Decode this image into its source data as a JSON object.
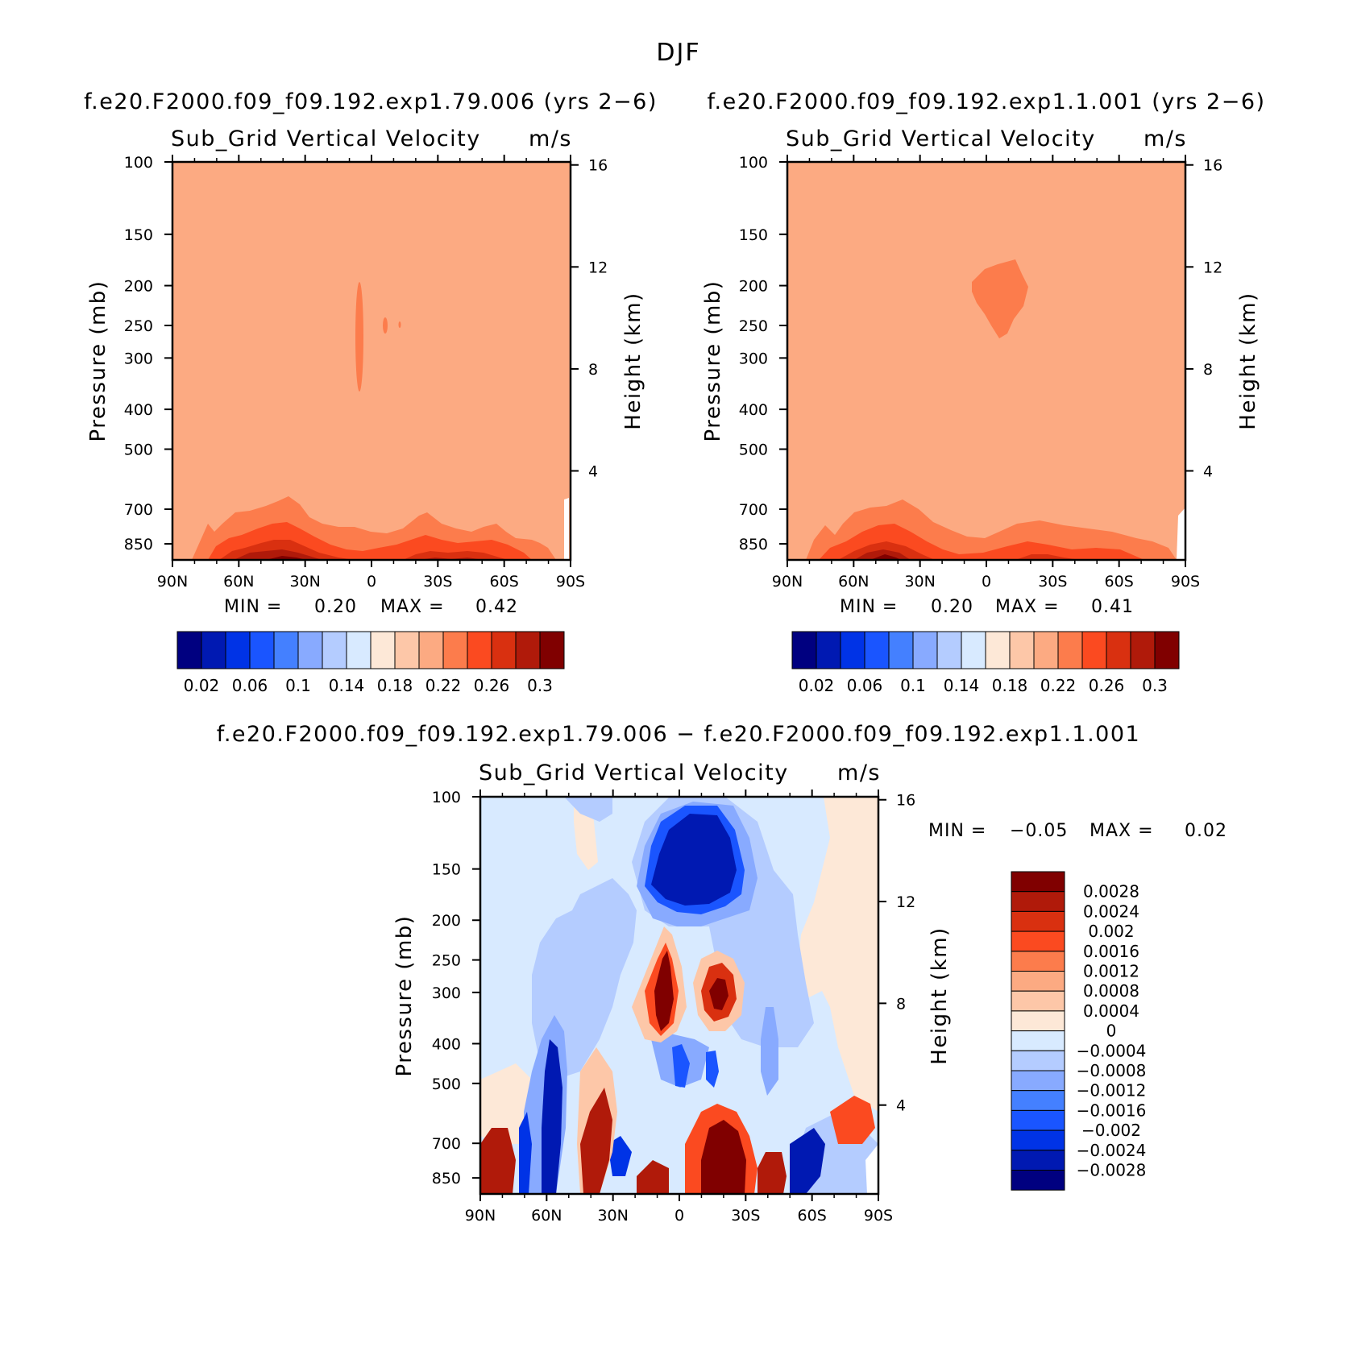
{
  "figure_title": "DJF",
  "chart_data": [
    {
      "type": "heatmap",
      "id": "left",
      "case_title": "f.e20.F2000.f09_f09.192.exp1.79.006 (yrs 2−6)",
      "title": "Sub_Grid Vertical Velocity",
      "units": "m/s",
      "ylabel": "Pressure (mb)",
      "y2label": "Height (km)",
      "x_ticks": [
        "90N",
        "60N",
        "30N",
        "0",
        "30S",
        "60S",
        "90S"
      ],
      "x_values": [
        90,
        60,
        30,
        0,
        -30,
        -60,
        -90
      ],
      "y_ticks": [
        "100",
        "150",
        "200",
        "250",
        "300",
        "400",
        "500",
        "700",
        "850"
      ],
      "y_values": [
        100,
        150,
        200,
        250,
        300,
        400,
        500,
        700,
        850
      ],
      "y2_ticks": [
        "16",
        "12",
        "8",
        "4"
      ],
      "y2_values": [
        16,
        12,
        8,
        4
      ],
      "ylim": [
        100,
        930
      ],
      "min_label": "MIN =",
      "min_value": "0.20",
      "max_label": "MAX =",
      "max_value": "0.42",
      "colorbar_labels": [
        "0.02",
        "0.06",
        "0.1",
        "0.14",
        "0.18",
        "0.22",
        "0.26",
        "0.3"
      ],
      "colorbar_levels": [
        0.02,
        0.04,
        0.06,
        0.08,
        0.1,
        0.12,
        0.14,
        0.16,
        0.18,
        0.2,
        0.22,
        0.24,
        0.26,
        0.28,
        0.3
      ]
    },
    {
      "type": "heatmap",
      "id": "right",
      "case_title": "f.e20.F2000.f09_f09.192.exp1.1.001 (yrs 2−6)",
      "title": "Sub_Grid Vertical Velocity",
      "units": "m/s",
      "ylabel": "Pressure (mb)",
      "y2label": "Height (km)",
      "x_ticks": [
        "90N",
        "60N",
        "30N",
        "0",
        "30S",
        "60S",
        "90S"
      ],
      "x_values": [
        90,
        60,
        30,
        0,
        -30,
        -60,
        -90
      ],
      "y_ticks": [
        "100",
        "150",
        "200",
        "250",
        "300",
        "400",
        "500",
        "700",
        "850"
      ],
      "y_values": [
        100,
        150,
        200,
        250,
        300,
        400,
        500,
        700,
        850
      ],
      "y2_ticks": [
        "16",
        "12",
        "8",
        "4"
      ],
      "y2_values": [
        16,
        12,
        8,
        4
      ],
      "ylim": [
        100,
        930
      ],
      "min_label": "MIN =",
      "min_value": "0.20",
      "max_label": "MAX =",
      "max_value": "0.41",
      "colorbar_labels": [
        "0.02",
        "0.06",
        "0.1",
        "0.14",
        "0.18",
        "0.22",
        "0.26",
        "0.3"
      ],
      "colorbar_levels": [
        0.02,
        0.04,
        0.06,
        0.08,
        0.1,
        0.12,
        0.14,
        0.16,
        0.18,
        0.2,
        0.22,
        0.24,
        0.26,
        0.28,
        0.3
      ]
    },
    {
      "type": "heatmap",
      "id": "diff",
      "case_title": "f.e20.F2000.f09_f09.192.exp1.79.006 − f.e20.F2000.f09_f09.192.exp1.1.001",
      "title": "Sub_Grid Vertical Velocity",
      "units": "m/s",
      "ylabel": "Pressure (mb)",
      "y2label": "Height (km)",
      "x_ticks": [
        "90N",
        "60N",
        "30N",
        "0",
        "30S",
        "60S",
        "90S"
      ],
      "x_values": [
        90,
        60,
        30,
        0,
        -30,
        -60,
        -90
      ],
      "y_ticks": [
        "100",
        "150",
        "200",
        "250",
        "300",
        "400",
        "500",
        "700",
        "850"
      ],
      "y_values": [
        100,
        150,
        200,
        250,
        300,
        400,
        500,
        700,
        850
      ],
      "y2_ticks": [
        "16",
        "12",
        "8",
        "4"
      ],
      "y2_values": [
        16,
        12,
        8,
        4
      ],
      "ylim": [
        100,
        930
      ],
      "min_label": "MIN =",
      "min_value": "−0.05",
      "max_label": "MAX =",
      "max_value": "0.02",
      "colorbar_labels": [
        "0.0028",
        "0.0024",
        "0.002",
        "0.0016",
        "0.0012",
        "0.0008",
        "0.0004",
        "0",
        "−0.0004",
        "−0.0008",
        "−0.0012",
        "−0.0016",
        "−0.002",
        "−0.0024",
        "−0.0028"
      ],
      "colorbar_levels": [
        0.0028,
        0.0024,
        0.002,
        0.0016,
        0.0012,
        0.0008,
        0.0004,
        0,
        -0.0004,
        -0.0008,
        -0.0012,
        -0.0016,
        -0.002,
        -0.0024,
        -0.0028
      ]
    }
  ],
  "colors": {
    "seq": [
      "#000080",
      "#0019b2",
      "#0033e6",
      "#1a55ff",
      "#4480ff",
      "#88aaff",
      "#b4ccff",
      "#d8eaff",
      "#fde8d7",
      "#fdc7a8",
      "#fcaa82",
      "#fc7c4c",
      "#fb4a20",
      "#d93010",
      "#b01a0a",
      "#800000"
    ],
    "div": [
      "#800000",
      "#b01a0a",
      "#d93010",
      "#fb4a20",
      "#fc7c4c",
      "#fcaa82",
      "#fdc7a8",
      "#fde8d7",
      "#d8eaff",
      "#b4ccff",
      "#88aaff",
      "#4480ff",
      "#1a55ff",
      "#0033e6",
      "#0019b2",
      "#000080"
    ]
  }
}
